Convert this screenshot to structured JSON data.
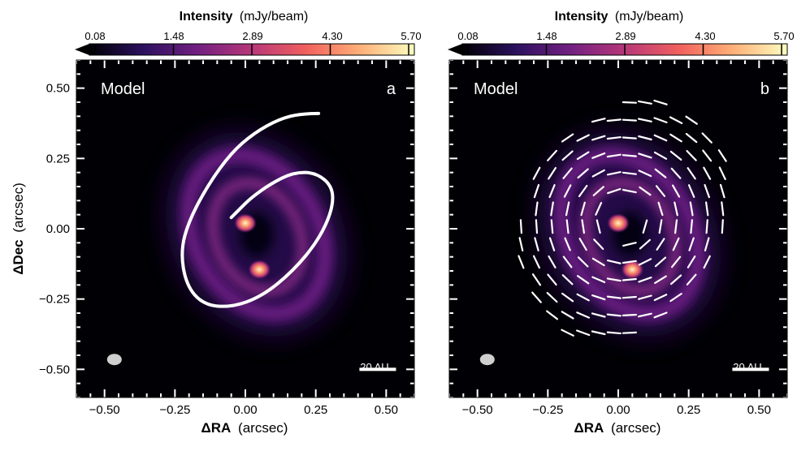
{
  "chart_data": [
    {
      "type": "heatmap",
      "panel_label": "a",
      "model_label": "Model",
      "colorbar": {
        "title_bold": "Intensity",
        "title_unit": "(mJy/beam)",
        "ticks": [
          "0.08",
          "1.48",
          "2.89",
          "4.30",
          "5.70"
        ],
        "range": [
          0.08,
          5.7
        ],
        "colormap": [
          "#000004",
          "#2c115f",
          "#721f81",
          "#b73779",
          "#f1605d",
          "#feb078",
          "#fcfdbf"
        ]
      },
      "xlabel_bold": "ΔRA",
      "xlabel_unit": "(arcsec)",
      "ylabel_bold": "ΔDec",
      "ylabel_unit": "(arcsec)",
      "xlim": [
        -0.6,
        0.6
      ],
      "ylim": [
        -0.6,
        0.6
      ],
      "xticks": [
        -0.5,
        -0.25,
        0.0,
        0.25,
        0.5
      ],
      "xtick_labels": [
        "−0.50",
        "−0.25",
        "0.00",
        "0.25",
        "0.50"
      ],
      "yticks": [
        0.5,
        0.25,
        0.0,
        -0.25,
        -0.5
      ],
      "ytick_labels": [
        "0.50",
        "0.25",
        "0.00",
        "−0.25",
        "−0.50"
      ],
      "scalebar_label": "20 AU",
      "sources": [
        {
          "name": "source-north",
          "x": 0.0,
          "y": 0.02
        },
        {
          "name": "source-south",
          "x": 0.05,
          "y": -0.145
        }
      ],
      "overlay": "spiral",
      "overlay_spiral_points": [
        [
          0.26,
          0.41
        ],
        [
          0.2,
          0.41
        ],
        [
          0.12,
          0.39
        ],
        [
          0.03,
          0.34
        ],
        [
          -0.05,
          0.27
        ],
        [
          -0.13,
          0.16
        ],
        [
          -0.2,
          0.03
        ],
        [
          -0.23,
          -0.08
        ],
        [
          -0.21,
          -0.2
        ],
        [
          -0.15,
          -0.27
        ],
        [
          -0.05,
          -0.28
        ],
        [
          0.06,
          -0.24
        ],
        [
          0.17,
          -0.15
        ],
        [
          0.26,
          -0.04
        ],
        [
          0.31,
          0.07
        ],
        [
          0.31,
          0.15
        ],
        [
          0.25,
          0.2
        ],
        [
          0.17,
          0.2
        ],
        [
          0.09,
          0.16
        ],
        [
          0.02,
          0.11
        ],
        [
          -0.02,
          0.07
        ],
        [
          -0.05,
          0.04
        ]
      ]
    },
    {
      "type": "heatmap",
      "panel_label": "b",
      "model_label": "Model",
      "colorbar": {
        "title_bold": "Intensity",
        "title_unit": "(mJy/beam)",
        "ticks": [
          "0.08",
          "1.48",
          "2.89",
          "4.30",
          "5.70"
        ],
        "range": [
          0.08,
          5.7
        ],
        "colormap": [
          "#000004",
          "#2c115f",
          "#721f81",
          "#b73779",
          "#f1605d",
          "#feb078",
          "#fcfdbf"
        ]
      },
      "xlabel_bold": "ΔRA",
      "xlabel_unit": "(arcsec)",
      "xlim": [
        -0.6,
        0.6
      ],
      "ylim": [
        -0.6,
        0.6
      ],
      "xticks": [
        -0.5,
        -0.25,
        0.0,
        0.25,
        0.5
      ],
      "xtick_labels": [
        "−0.50",
        "−0.25",
        "0.00",
        "0.25",
        "0.50"
      ],
      "yticks": [
        0.5,
        0.25,
        0.0,
        -0.25,
        -0.5
      ],
      "scalebar_label": "20 AU",
      "sources": [
        {
          "name": "source-north",
          "x": 0.0,
          "y": 0.02
        },
        {
          "name": "source-south",
          "x": 0.05,
          "y": -0.145
        }
      ],
      "overlay": "polarization-vectors"
    }
  ]
}
